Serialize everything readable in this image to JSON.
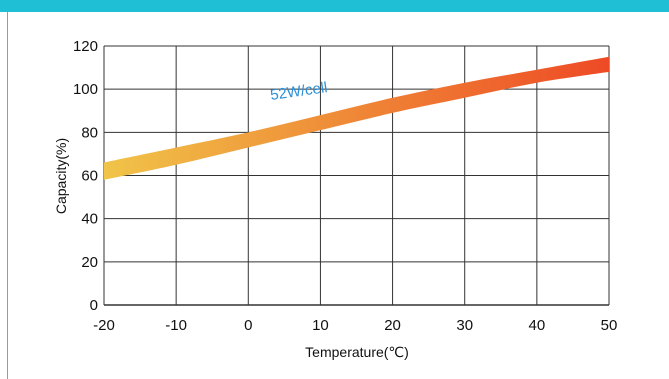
{
  "header": {
    "accent_color": "#1fbfd6"
  },
  "chart_data": {
    "type": "area",
    "title": "",
    "xlabel": "Temperature(℃)",
    "ylabel": "Capacity(%)",
    "xlim": [
      -20,
      50
    ],
    "ylim": [
      0,
      120
    ],
    "x_ticks": [
      "-20",
      "-10",
      "0",
      "10",
      "20",
      "30",
      "40",
      "50"
    ],
    "y_ticks": [
      "0",
      "20",
      "40",
      "60",
      "80",
      "100",
      "120"
    ],
    "grid": true,
    "series": [
      {
        "name": "52W/cell",
        "x": [
          -20,
          -10,
          0,
          10,
          20,
          30,
          40,
          50
        ],
        "upper": [
          66,
          73,
          80,
          88,
          96,
          103,
          109,
          115
        ],
        "lower": [
          58,
          65,
          73,
          81,
          89,
          96,
          103,
          108
        ],
        "color_start": "#f0c448",
        "color_end": "#ee4a25"
      }
    ]
  }
}
